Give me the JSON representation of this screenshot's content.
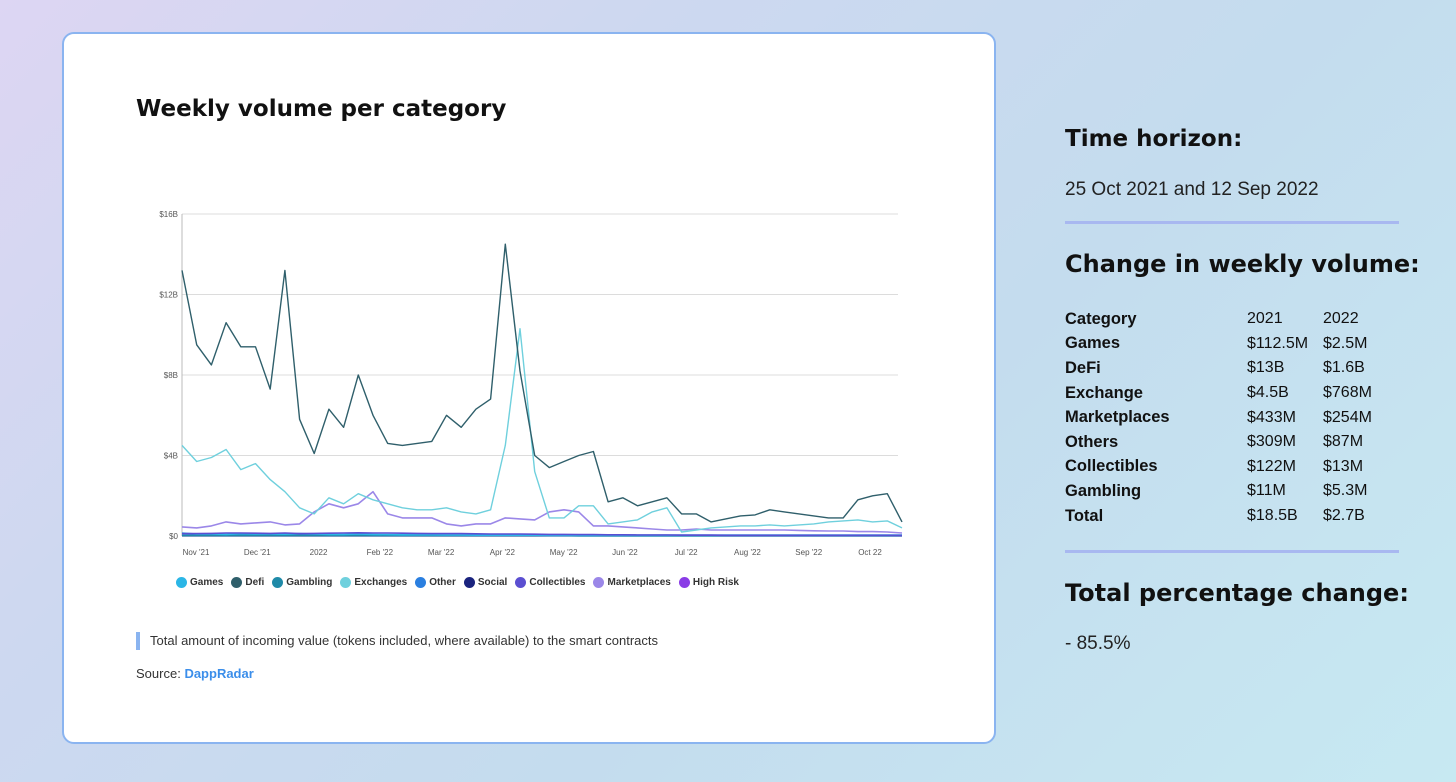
{
  "card": {
    "title": "Weekly volume per category",
    "note": "Total amount of incoming value (tokens included, where available) to the smart contracts",
    "source_label": "Source:",
    "source_link": "DappRadar"
  },
  "chart_data": {
    "type": "line",
    "title": "Weekly volume per category",
    "xlabel": "",
    "ylabel": "",
    "ylim": [
      0,
      16
    ],
    "y_unit": "$B",
    "y_ticks": [
      "$0",
      "$4B",
      "$8B",
      "$12B",
      "$16B"
    ],
    "x_tick_labels": [
      "Nov '21",
      "Dec '21",
      "2022",
      "Feb '22",
      "Mar '22",
      "Apr '22",
      "May '22",
      "Jun '22",
      "Jul '22",
      "Aug '22",
      "Sep '22",
      "Oct 22"
    ],
    "grid": true,
    "legend_position": "bottom",
    "series": [
      {
        "name": "Games",
        "color": "#2bb6e6",
        "values": [
          0.15,
          0.1,
          0.1,
          0.08,
          0.12,
          0.1,
          0.1,
          0.09,
          0.12,
          0.1,
          0.08,
          0.08,
          0.1,
          0.08,
          0.07,
          0.06,
          0.06,
          0.06,
          0.05,
          0.05,
          0.04,
          0.04,
          0.04,
          0.04,
          0.04,
          0.03,
          0.03,
          0.03,
          0.03,
          0.03,
          0.03,
          0.03,
          0.03,
          0.03,
          0.03,
          0.03,
          0.03,
          0.03,
          0.03,
          0.03,
          0.03,
          0.03,
          0.03,
          0.03,
          0.03,
          0.03,
          0.03,
          0.03,
          0.03,
          0.03
        ]
      },
      {
        "name": "Defi",
        "color": "#2f5f6b",
        "values": [
          13.2,
          9.5,
          8.5,
          10.6,
          9.4,
          9.4,
          7.3,
          13.2,
          5.8,
          4.1,
          6.3,
          5.4,
          8,
          6,
          4.6,
          4.5,
          4.6,
          4.7,
          6,
          5.4,
          6.3,
          6.8,
          14.5,
          8.2,
          4,
          3.4,
          3.7,
          4,
          4.2,
          1.7,
          1.9,
          1.5,
          1.7,
          1.9,
          1.1,
          1.1,
          0.7,
          0.85,
          1,
          1.05,
          1.3,
          1.2,
          1.1,
          1.0,
          0.9,
          0.9,
          1.8,
          2.0,
          2.1,
          0.7
        ]
      },
      {
        "name": "Gambling",
        "color": "#1f8aa8",
        "values": [
          0.02,
          0.02,
          0.02,
          0.02,
          0.02,
          0.02,
          0.02,
          0.02,
          0.02,
          0.02,
          0.02,
          0.02,
          0.02,
          0.02,
          0.02,
          0.02,
          0.02,
          0.02,
          0.02,
          0.02,
          0.02,
          0.02,
          0.02,
          0.02,
          0.02,
          0.02,
          0.02,
          0.01,
          0.01,
          0.01,
          0.01,
          0.01,
          0.01,
          0.01,
          0.01,
          0.01,
          0.01,
          0.01,
          0.01,
          0.01,
          0.01,
          0.01,
          0.01,
          0.01,
          0.01,
          0.01,
          0.01,
          0.01,
          0.01,
          0.01
        ]
      },
      {
        "name": "Exchanges",
        "color": "#6fd0dd",
        "values": [
          4.5,
          3.7,
          3.9,
          4.3,
          3.3,
          3.6,
          2.8,
          2.2,
          1.4,
          1.1,
          1.9,
          1.6,
          2.1,
          1.8,
          1.6,
          1.4,
          1.3,
          1.3,
          1.4,
          1.2,
          1.1,
          1.3,
          4.5,
          10.3,
          3.2,
          0.9,
          0.9,
          1.5,
          1.5,
          0.6,
          0.7,
          0.8,
          1.2,
          1.4,
          0.2,
          0.3,
          0.4,
          0.45,
          0.5,
          0.5,
          0.55,
          0.5,
          0.55,
          0.6,
          0.7,
          0.75,
          0.8,
          0.7,
          0.75,
          0.4
        ]
      },
      {
        "name": "Other",
        "color": "#2a7fe0",
        "values": [
          0.05,
          0.05,
          0.05,
          0.05,
          0.05,
          0.05,
          0.05,
          0.05,
          0.05,
          0.05,
          0.05,
          0.05,
          0.05,
          0.05,
          0.05,
          0.05,
          0.05,
          0.05,
          0.05,
          0.05,
          0.05,
          0.05,
          0.05,
          0.05,
          0.05,
          0.05,
          0.05,
          0.05,
          0.05,
          0.05,
          0.05,
          0.05,
          0.05,
          0.05,
          0.05,
          0.05,
          0.05,
          0.05,
          0.05,
          0.05,
          0.05,
          0.05,
          0.05,
          0.05,
          0.05,
          0.05,
          0.05,
          0.05,
          0.05,
          0.05
        ]
      },
      {
        "name": "Social",
        "color": "#1a237e",
        "values": [
          0.01,
          0.01,
          0.01,
          0.01,
          0.01,
          0.01,
          0.01,
          0.01,
          0.01,
          0.01,
          0.01,
          0.01,
          0.01,
          0.01,
          0.01,
          0.01,
          0.01,
          0.01,
          0.01,
          0.01,
          0.01,
          0.01,
          0.01,
          0.01,
          0.01,
          0.01,
          0.01,
          0.01,
          0.01,
          0.01,
          0.01,
          0.01,
          0.01,
          0.01,
          0.01,
          0.01,
          0.01,
          0.01,
          0.01,
          0.01,
          0.01,
          0.01,
          0.01,
          0.01,
          0.01,
          0.01,
          0.01,
          0.01,
          0.01,
          0.01
        ]
      },
      {
        "name": "Collectibles",
        "color": "#5b4fd1",
        "values": [
          0.12,
          0.12,
          0.13,
          0.15,
          0.15,
          0.14,
          0.13,
          0.15,
          0.12,
          0.13,
          0.14,
          0.15,
          0.16,
          0.15,
          0.15,
          0.14,
          0.13,
          0.12,
          0.12,
          0.12,
          0.11,
          0.1,
          0.1,
          0.1,
          0.09,
          0.08,
          0.08,
          0.07,
          0.07,
          0.06,
          0.06,
          0.05,
          0.05,
          0.05,
          0.04,
          0.04,
          0.04,
          0.03,
          0.03,
          0.03,
          0.03,
          0.03,
          0.03,
          0.03,
          0.03,
          0.03,
          0.03,
          0.03,
          0.03,
          0.02
        ]
      },
      {
        "name": "Marketplaces",
        "color": "#9b87e8",
        "values": [
          0.45,
          0.4,
          0.5,
          0.7,
          0.6,
          0.65,
          0.7,
          0.55,
          0.6,
          1.2,
          1.6,
          1.4,
          1.6,
          2.2,
          1.1,
          0.9,
          0.9,
          0.9,
          0.6,
          0.5,
          0.6,
          0.6,
          0.9,
          0.85,
          0.8,
          1.2,
          1.3,
          1.2,
          0.5,
          0.5,
          0.45,
          0.4,
          0.35,
          0.3,
          0.3,
          0.35,
          0.3,
          0.3,
          0.3,
          0.3,
          0.3,
          0.3,
          0.28,
          0.26,
          0.25,
          0.25,
          0.22,
          0.22,
          0.2,
          0.15
        ]
      },
      {
        "name": "High Risk",
        "color": "#8a3ce6",
        "values": [
          0.03,
          0.03,
          0.03,
          0.03,
          0.03,
          0.03,
          0.03,
          0.03,
          0.03,
          0.03,
          0.03,
          0.03,
          0.03,
          0.03,
          0.03,
          0.03,
          0.03,
          0.03,
          0.03,
          0.03,
          0.03,
          0.03,
          0.03,
          0.03,
          0.03,
          0.03,
          0.03,
          0.03,
          0.03,
          0.03,
          0.03,
          0.03,
          0.03,
          0.03,
          0.03,
          0.03,
          0.03,
          0.03,
          0.03,
          0.03,
          0.03,
          0.03,
          0.03,
          0.03,
          0.03,
          0.03,
          0.03,
          0.03,
          0.03,
          0.03
        ]
      }
    ]
  },
  "side": {
    "time_horizon_title": "Time horizon:",
    "time_horizon_value": "25 Oct 2021 and 12 Sep 2022",
    "change_title": "Change in weekly volume:",
    "table_headers": [
      "Category",
      "2021",
      "2022"
    ],
    "table_rows": [
      [
        "Games",
        "$112.5M",
        "$2.5M"
      ],
      [
        "DeFi",
        "$13B",
        "$1.6B"
      ],
      [
        "Exchange",
        "$4.5B",
        "$768M"
      ],
      [
        "Marketplaces",
        "$433M",
        "$254M"
      ],
      [
        "Others",
        "$309M",
        "$87M"
      ],
      [
        "Collectibles",
        "$122M",
        "$13M"
      ],
      [
        "Gambling",
        "$11M",
        "$5.3M"
      ],
      [
        "Total",
        "$18.5B",
        "$2.7B"
      ]
    ],
    "total_change_title": "Total percentage change:",
    "total_change_value": "- 85.5%"
  }
}
